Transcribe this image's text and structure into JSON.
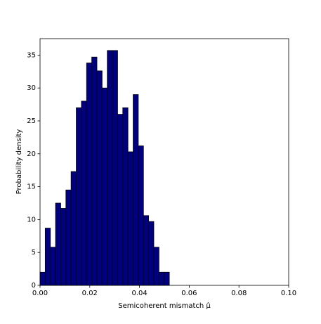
{
  "chart_data": {
    "type": "histogram",
    "xlabel": "Semicoherent mismatch μ̂",
    "ylabel": "Probability density",
    "bins": [
      0,
      0.00208,
      0.00416,
      0.00624,
      0.00832,
      0.0104,
      0.01248,
      0.01456,
      0.01664,
      0.01872,
      0.0208,
      0.02288,
      0.02496,
      0.02704,
      0.02912,
      0.0312,
      0.03328,
      0.03536,
      0.03744,
      0.03952,
      0.0416,
      0.04368,
      0.04576,
      0.04784,
      0.04992,
      0.052
    ],
    "values": [
      2,
      8.7,
      5.8,
      12.5,
      11.7,
      14.5,
      17.3,
      27,
      28,
      33.8,
      34.7,
      32.6,
      30,
      35.7,
      35.7,
      26,
      27,
      20.3,
      29,
      21.2,
      10.6,
      9.7,
      5.8,
      2,
      2
    ],
    "color": "#000080",
    "edgecolor": "#000000",
    "xlim": [
      0,
      0.1
    ],
    "xticks": [
      {
        "value": 0,
        "label": "0.00"
      },
      0.02,
      0.04,
      0.06,
      0.08,
      {
        "value": 0.1,
        "label": "0.10"
      }
    ],
    "ylim": [
      0,
      37.5
    ],
    "yticks": [
      0,
      5,
      10,
      15,
      20,
      25,
      30,
      35
    ]
  }
}
